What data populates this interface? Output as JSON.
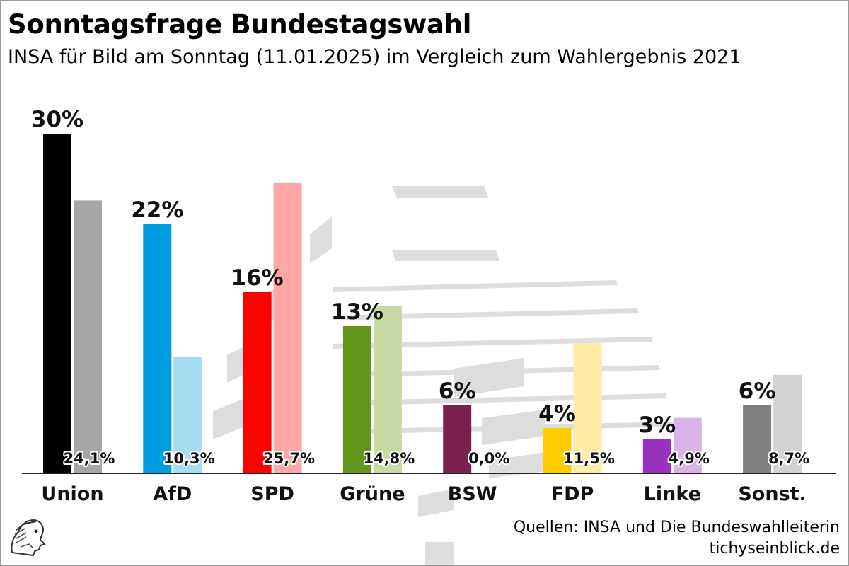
{
  "header": {
    "title": "Sonntagsfrage Bundestagswahl",
    "subtitle": "INSA für Bild am Sonntag (11.01.2025) im Vergleich zum Wahlergebnis 2021"
  },
  "footer": {
    "sources": "Quellen: INSA und Die Bundeswahlleiterin",
    "website": "tichyseinblick.de"
  },
  "chart_data": {
    "type": "bar",
    "title": "Sonntagsfrage Bundestagswahl",
    "subtitle": "INSA für Bild am Sonntag (11.01.2025) im Vergleich zum Wahlergebnis 2021",
    "categories": [
      "Union",
      "AfD",
      "SPD",
      "Grüne",
      "BSW",
      "FDP",
      "Linke",
      "Sonst."
    ],
    "series": [
      {
        "values": [
          30,
          22,
          16,
          13,
          6,
          4,
          3,
          6
        ],
        "labels": [
          "30%",
          "22%",
          "16%",
          "13%",
          "6%",
          "4%",
          "3%",
          "6%"
        ]
      },
      {
        "values": [
          24.1,
          10.3,
          25.7,
          14.8,
          0.0,
          11.5,
          4.9,
          8.7
        ],
        "labels": [
          "24,1%",
          "10,3%",
          "25,7%",
          "14,8%",
          "0,0%",
          "11,5%",
          "4,9%",
          "8,7%"
        ]
      }
    ],
    "colors_poll": [
      "#000000",
      "#009ee0",
      "#ff0000",
      "#64961e",
      "#7a2150",
      "#ffcc00",
      "#9b32be",
      "#808080"
    ],
    "colors_2021": [
      "#a6a6a6",
      "#a6dcf3",
      "#ffa6a6",
      "#c8d9a6",
      "#cfb2c0",
      "#ffeba6",
      "#d9b3e5",
      "#d2d2d2"
    ],
    "ylim": [
      0,
      30
    ],
    "grid": false,
    "legend": "none"
  }
}
